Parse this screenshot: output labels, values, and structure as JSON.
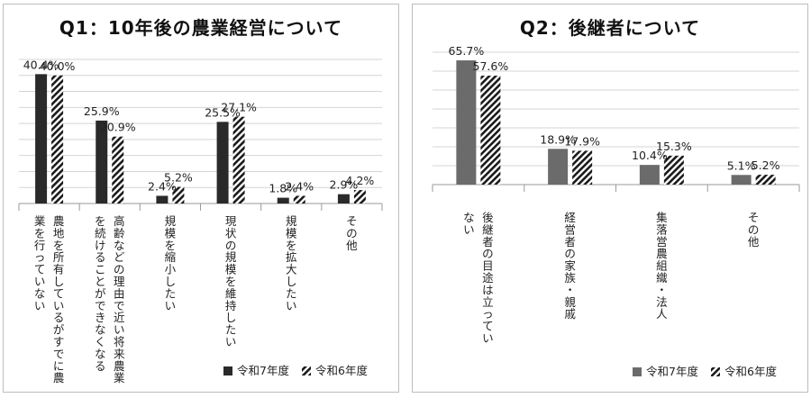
{
  "chart_data": [
    {
      "type": "bar",
      "title": "Q1：10年後の農業経営について",
      "categories": [
        [
          "農地を所有しているがすでに農",
          "業を行っていない"
        ],
        [
          "高齢などの理由で近い将来農業",
          "を続けることができなくなる"
        ],
        [
          "規模を縮小したい"
        ],
        [
          "現状の規模を維持したい"
        ],
        [
          "規模を拡大したい"
        ],
        [
          "その他"
        ]
      ],
      "series": [
        {
          "name": "令和7年度",
          "values": [
            40.4,
            25.9,
            2.4,
            25.5,
            1.8,
            2.9
          ],
          "labels": [
            "40.4%",
            "25.9%",
            "2.4%",
            "25.5%",
            "1.8%",
            "2.9%"
          ],
          "color": "#2a2a2a",
          "pattern": "solid"
        },
        {
          "name": "令和6年度",
          "values": [
            40.0,
            20.9,
            5.2,
            27.1,
            2.4,
            4.2
          ],
          "labels": [
            "40.0%",
            "20.9%",
            "5.2%",
            "27.1%",
            "2.4%",
            "4.2%"
          ],
          "color": "#1a1a1a",
          "pattern": "diagonal"
        }
      ],
      "ylim": [
        0,
        45
      ],
      "grid": true,
      "legend": "bottom-right"
    },
    {
      "type": "bar",
      "title": "Q2：後継者について",
      "categories": [
        [
          "後継者の目途は立ってい",
          "ない"
        ],
        [
          "経営者の家族・親戚"
        ],
        [
          "集落営農組織・法人"
        ],
        [
          "その他"
        ]
      ],
      "series": [
        {
          "name": "令和7年度",
          "values": [
            65.7,
            18.9,
            10.4,
            5.1
          ],
          "labels": [
            "65.7%",
            "18.9%",
            "10.4%",
            "5.1%"
          ],
          "color": "#6b6b6b",
          "pattern": "solid"
        },
        {
          "name": "令和6年度",
          "values": [
            57.6,
            17.9,
            15.3,
            5.2
          ],
          "labels": [
            "57.6%",
            "17.9%",
            "15.3%",
            "5.2%"
          ],
          "color": "#1a1a1a",
          "pattern": "diagonal"
        }
      ],
      "ylim": [
        0,
        70
      ],
      "grid": true,
      "legend": "bottom-right"
    }
  ]
}
